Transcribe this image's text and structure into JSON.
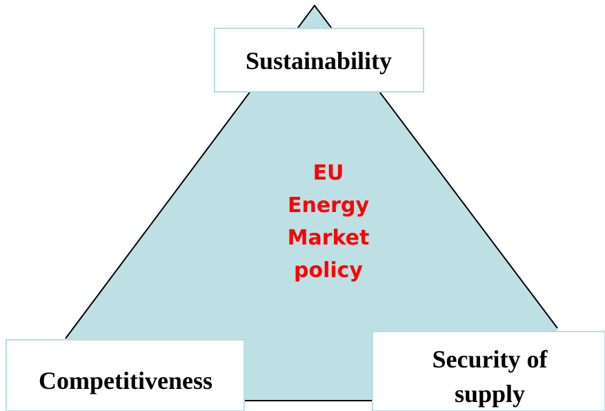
{
  "center": {
    "lines": [
      "EU",
      "Energy",
      "Market",
      "policy"
    ]
  },
  "nodes": [
    {
      "label": "Sustainability"
    },
    {
      "label": "Competitiveness"
    },
    {
      "lines": [
        "Security of",
        "supply"
      ]
    }
  ]
}
